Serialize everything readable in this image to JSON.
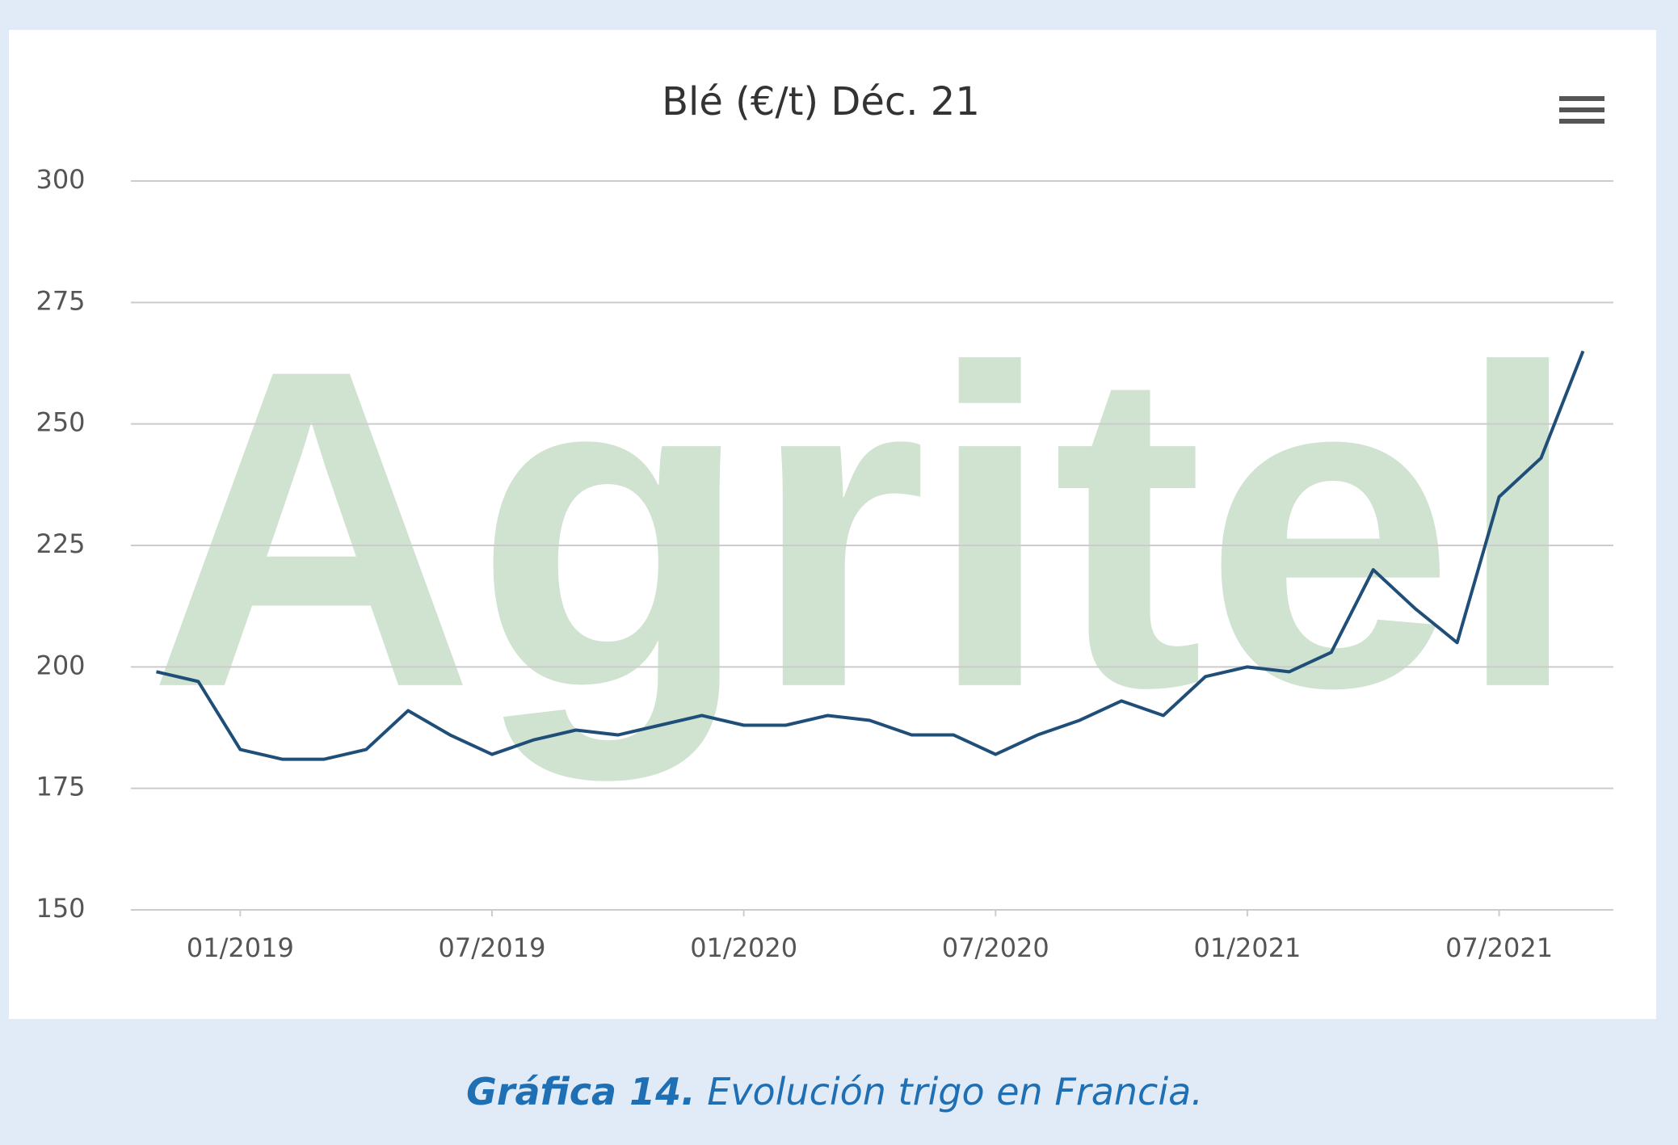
{
  "chart_data": {
    "type": "line",
    "title": "Blé (€/t) Déc. 21",
    "watermark": "Agritel",
    "x": [
      "2018-11",
      "2018-12",
      "2019-01",
      "2019-02",
      "2019-03",
      "2019-04",
      "2019-05",
      "2019-06",
      "2019-07",
      "2019-08",
      "2019-09",
      "2019-10",
      "2019-11",
      "2019-12",
      "2020-01",
      "2020-02",
      "2020-03",
      "2020-04",
      "2020-05",
      "2020-06",
      "2020-07",
      "2020-08",
      "2020-09",
      "2020-10",
      "2020-11",
      "2020-12",
      "2021-01",
      "2021-02",
      "2021-03",
      "2021-04",
      "2021-05",
      "2021-06",
      "2021-07",
      "2021-08",
      "2021-09"
    ],
    "series": [
      {
        "color": "#1f4e79",
        "values": [
          199,
          197,
          183,
          181,
          181,
          183,
          191,
          186,
          182,
          185,
          187,
          186,
          188,
          190,
          188,
          188,
          190,
          189,
          186,
          186,
          182,
          186,
          189,
          193,
          190,
          198,
          200,
          199,
          203,
          220,
          212,
          205,
          235,
          243,
          265
        ]
      }
    ],
    "ylim": [
      150,
      300
    ],
    "yticks": [
      150,
      175,
      200,
      225,
      250,
      275,
      300
    ],
    "xticks": [
      {
        "value": "2019-01",
        "label": "01/2019"
      },
      {
        "value": "2019-07",
        "label": "07/2019"
      },
      {
        "value": "2020-01",
        "label": "01/2020"
      },
      {
        "value": "2020-07",
        "label": "07/2020"
      },
      {
        "value": "2021-01",
        "label": "01/2021"
      },
      {
        "value": "2021-07",
        "label": "07/2021"
      }
    ],
    "grid": true
  },
  "caption": {
    "label": "Gráfica 14.",
    "text": "Evolución trigo en Francia."
  }
}
